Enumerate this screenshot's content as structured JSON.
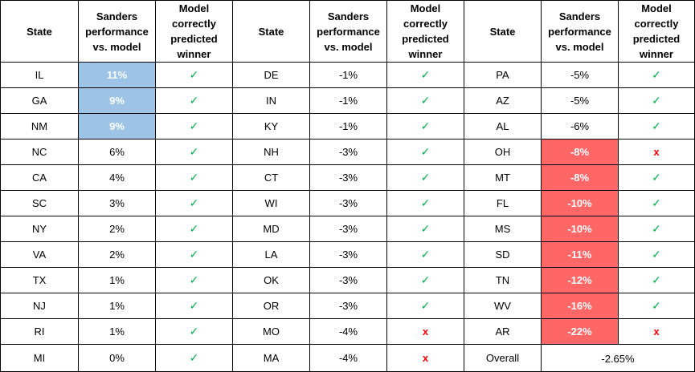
{
  "headers": {
    "state": "State",
    "perf": "Sanders performance vs. model",
    "correct": "Model correctly predicted winner"
  },
  "colors": {
    "blue": "#9dc3e6",
    "red": "#ff6666",
    "check": "#00b050",
    "cross": "#ff0000"
  },
  "symbols": {
    "check": "✓",
    "cross": "x"
  },
  "groups": [
    {
      "rows": [
        {
          "state": "IL",
          "perf": "11%",
          "correct": true,
          "highlight": "blue"
        },
        {
          "state": "GA",
          "perf": "9%",
          "correct": true,
          "highlight": "blue"
        },
        {
          "state": "NM",
          "perf": "9%",
          "correct": true,
          "highlight": "blue"
        },
        {
          "state": "NC",
          "perf": "6%",
          "correct": true,
          "highlight": ""
        },
        {
          "state": "CA",
          "perf": "4%",
          "correct": true,
          "highlight": ""
        },
        {
          "state": "SC",
          "perf": "3%",
          "correct": true,
          "highlight": ""
        },
        {
          "state": "NY",
          "perf": "2%",
          "correct": true,
          "highlight": ""
        },
        {
          "state": "VA",
          "perf": "2%",
          "correct": true,
          "highlight": ""
        },
        {
          "state": "TX",
          "perf": "1%",
          "correct": true,
          "highlight": ""
        },
        {
          "state": "NJ",
          "perf": "1%",
          "correct": true,
          "highlight": ""
        },
        {
          "state": "RI",
          "perf": "1%",
          "correct": true,
          "highlight": ""
        },
        {
          "state": "MI",
          "perf": "0%",
          "correct": true,
          "highlight": ""
        }
      ]
    },
    {
      "rows": [
        {
          "state": "DE",
          "perf": "-1%",
          "correct": true,
          "highlight": ""
        },
        {
          "state": "IN",
          "perf": "-1%",
          "correct": true,
          "highlight": ""
        },
        {
          "state": "KY",
          "perf": "-1%",
          "correct": true,
          "highlight": ""
        },
        {
          "state": "NH",
          "perf": "-3%",
          "correct": true,
          "highlight": ""
        },
        {
          "state": "CT",
          "perf": "-3%",
          "correct": true,
          "highlight": ""
        },
        {
          "state": "WI",
          "perf": "-3%",
          "correct": true,
          "highlight": ""
        },
        {
          "state": "MD",
          "perf": "-3%",
          "correct": true,
          "highlight": ""
        },
        {
          "state": "LA",
          "perf": "-3%",
          "correct": true,
          "highlight": ""
        },
        {
          "state": "OK",
          "perf": "-3%",
          "correct": true,
          "highlight": ""
        },
        {
          "state": "OR",
          "perf": "-3%",
          "correct": true,
          "highlight": ""
        },
        {
          "state": "MO",
          "perf": "-4%",
          "correct": false,
          "highlight": ""
        },
        {
          "state": "MA",
          "perf": "-4%",
          "correct": false,
          "highlight": ""
        }
      ]
    },
    {
      "rows": [
        {
          "state": "PA",
          "perf": "-5%",
          "correct": true,
          "highlight": ""
        },
        {
          "state": "AZ",
          "perf": "-5%",
          "correct": true,
          "highlight": ""
        },
        {
          "state": "AL",
          "perf": "-6%",
          "correct": true,
          "highlight": ""
        },
        {
          "state": "OH",
          "perf": "-8%",
          "correct": false,
          "highlight": "red"
        },
        {
          "state": "MT",
          "perf": "-8%",
          "correct": true,
          "highlight": "red"
        },
        {
          "state": "FL",
          "perf": "-10%",
          "correct": true,
          "highlight": "red"
        },
        {
          "state": "MS",
          "perf": "-10%",
          "correct": true,
          "highlight": "red"
        },
        {
          "state": "SD",
          "perf": "-11%",
          "correct": true,
          "highlight": "red"
        },
        {
          "state": "TN",
          "perf": "-12%",
          "correct": true,
          "highlight": "red"
        },
        {
          "state": "WV",
          "perf": "-16%",
          "correct": true,
          "highlight": "red"
        },
        {
          "state": "AR",
          "perf": "-22%",
          "correct": false,
          "highlight": "red"
        }
      ]
    }
  ],
  "overall": {
    "label": "Overall",
    "value": "-2.65%"
  }
}
